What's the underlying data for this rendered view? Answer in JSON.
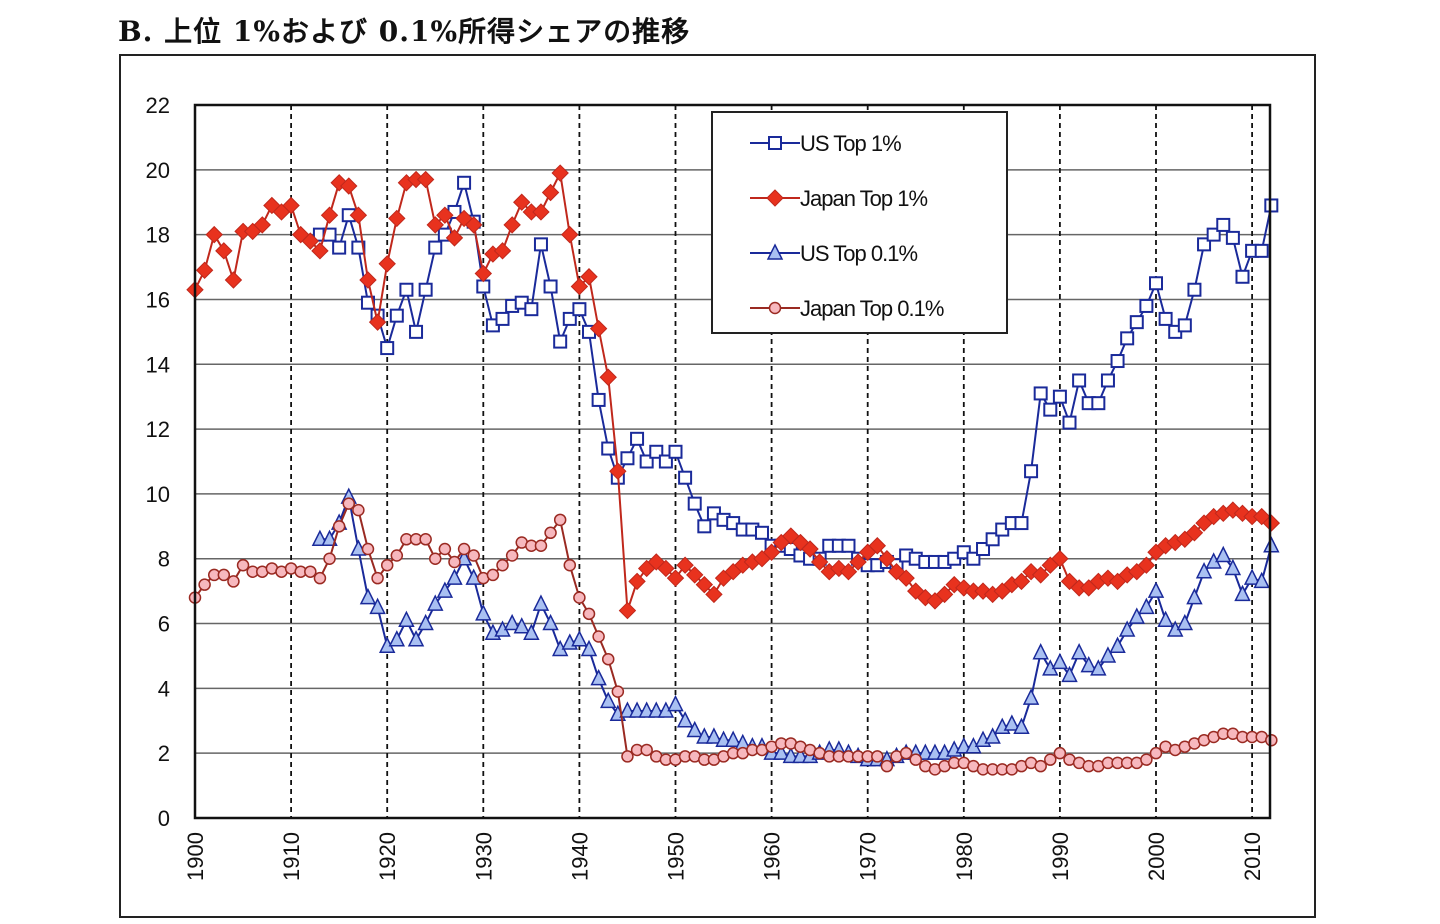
{
  "chart_data": {
    "type": "line",
    "title": "B. 上位 1%および 0.1%所得シェアの推移",
    "xlabel": "",
    "ylabel": "",
    "xlim": [
      1900,
      2012
    ],
    "ylim": [
      0,
      22
    ],
    "yticks": [
      0,
      2,
      4,
      6,
      8,
      10,
      12,
      14,
      16,
      18,
      20,
      22
    ],
    "xticks": [
      1900,
      1910,
      1920,
      1930,
      1940,
      1950,
      1960,
      1970,
      1980,
      1990,
      2000,
      2010
    ],
    "grid": "horizontal solid, vertical dashed",
    "legend_position": "top-center",
    "series": [
      {
        "name": "US Top 1%",
        "color": "#1a2a9a",
        "marker": "square-open",
        "start": 1913,
        "values": [
          18.0,
          18.0,
          17.6,
          18.6,
          17.6,
          15.9,
          15.5,
          14.5,
          15.5,
          16.3,
          15.0,
          16.3,
          17.6,
          18.0,
          18.7,
          19.6,
          18.4,
          16.4,
          15.2,
          15.4,
          15.8,
          15.9,
          15.7,
          17.7,
          16.4,
          14.7,
          15.4,
          15.7,
          15.0,
          12.9,
          11.4,
          10.5,
          11.1,
          11.7,
          11.0,
          11.3,
          11.0,
          11.3,
          10.5,
          9.7,
          9.0,
          9.4,
          9.2,
          9.1,
          8.9,
          8.9,
          8.8,
          8.4,
          8.4,
          8.3,
          8.1,
          8.0,
          8.0,
          8.4,
          8.4,
          8.4,
          8.0,
          7.8,
          7.8,
          7.9,
          7.8,
          8.1,
          8.0,
          7.9,
          7.9,
          7.9,
          8.0,
          8.2,
          8.0,
          8.3,
          8.6,
          8.9,
          9.1,
          9.1,
          10.7,
          13.1,
          12.6,
          13.0,
          12.2,
          13.5,
          12.8,
          12.8,
          13.5,
          14.1,
          14.8,
          15.3,
          15.8,
          16.5,
          15.4,
          15.0,
          15.2,
          16.3,
          17.7,
          18.0,
          18.3,
          17.9,
          16.7,
          17.5,
          17.5,
          18.9
        ]
      },
      {
        "name": "Japan Top 1%",
        "color": "#c0281c",
        "marker": "diamond-filled",
        "start": 1900,
        "values": [
          16.3,
          16.9,
          18.0,
          17.5,
          16.6,
          18.1,
          18.1,
          18.3,
          18.9,
          18.7,
          18.9,
          18.0,
          17.8,
          17.5,
          18.6,
          19.6,
          19.5,
          18.6,
          16.6,
          15.3,
          17.1,
          18.5,
          19.6,
          19.7,
          19.7,
          18.3,
          18.6,
          17.9,
          18.5,
          18.3,
          16.8,
          17.4,
          17.5,
          18.3,
          19.0,
          18.7,
          18.7,
          19.3,
          19.9,
          18.0,
          16.4,
          16.7,
          15.1,
          13.6,
          10.7,
          6.4,
          7.3,
          7.7,
          7.9,
          7.7,
          7.4,
          7.8,
          7.5,
          7.2,
          6.9,
          7.4,
          7.6,
          7.8,
          7.9,
          8.0,
          8.2,
          8.5,
          8.7,
          8.5,
          8.3,
          7.9,
          7.6,
          7.7,
          7.6,
          7.9,
          8.2,
          8.4,
          8.0,
          7.6,
          7.4,
          7.0,
          6.8,
          6.7,
          6.9,
          7.2,
          7.1,
          7.0,
          7.0,
          6.9,
          7.0,
          7.2,
          7.3,
          7.6,
          7.5,
          7.8,
          8.0,
          7.3,
          7.1,
          7.1,
          7.3,
          7.4,
          7.3,
          7.5,
          7.6,
          7.8,
          8.2,
          8.4,
          8.5,
          8.6,
          8.8,
          9.1,
          9.3,
          9.4,
          9.5,
          9.4,
          9.3,
          9.3,
          9.1
        ]
      },
      {
        "name": "US Top 0.1%",
        "color": "#1a2a9a",
        "fill": "#a9c0f2",
        "marker": "triangle",
        "start": 1913,
        "values": [
          8.6,
          8.6,
          9.1,
          9.9,
          8.3,
          6.8,
          6.5,
          5.3,
          5.5,
          6.1,
          5.5,
          6.0,
          6.6,
          7.0,
          7.4,
          8.0,
          7.4,
          6.3,
          5.7,
          5.8,
          6.0,
          5.9,
          5.7,
          6.6,
          6.0,
          5.2,
          5.4,
          5.5,
          5.2,
          4.3,
          3.6,
          3.2,
          3.3,
          3.3,
          3.3,
          3.3,
          3.3,
          3.5,
          3.0,
          2.7,
          2.5,
          2.5,
          2.4,
          2.4,
          2.3,
          2.2,
          2.2,
          2.0,
          2.0,
          1.9,
          1.9,
          1.9,
          2.0,
          2.1,
          2.1,
          2.0,
          1.9,
          1.8,
          1.8,
          1.8,
          1.9,
          2.0,
          2.0,
          2.0,
          2.0,
          2.0,
          2.1,
          2.2,
          2.2,
          2.4,
          2.5,
          2.8,
          2.9,
          2.8,
          3.7,
          5.1,
          4.6,
          4.8,
          4.4,
          5.1,
          4.7,
          4.6,
          5.0,
          5.3,
          5.8,
          6.2,
          6.5,
          7.0,
          6.1,
          5.8,
          6.0,
          6.8,
          7.6,
          7.9,
          8.1,
          7.7,
          6.9,
          7.4,
          7.3,
          8.4
        ]
      },
      {
        "name": "Japan Top 0.1%",
        "color": "#9a2a22",
        "fill": "#f7b8be",
        "marker": "circle",
        "start": 1900,
        "values": [
          6.8,
          7.2,
          7.5,
          7.5,
          7.3,
          7.8,
          7.6,
          7.6,
          7.7,
          7.6,
          7.7,
          7.6,
          7.6,
          7.4,
          8.0,
          9.0,
          9.7,
          9.5,
          8.3,
          7.4,
          7.8,
          8.1,
          8.6,
          8.6,
          8.6,
          8.0,
          8.3,
          7.9,
          8.3,
          8.1,
          7.4,
          7.5,
          7.8,
          8.1,
          8.5,
          8.4,
          8.4,
          8.8,
          9.2,
          7.8,
          6.8,
          6.3,
          5.6,
          4.9,
          3.9,
          1.9,
          2.1,
          2.1,
          1.9,
          1.8,
          1.8,
          1.9,
          1.9,
          1.8,
          1.8,
          1.9,
          2.0,
          2.0,
          2.1,
          2.1,
          2.2,
          2.3,
          2.3,
          2.2,
          2.1,
          2.0,
          1.9,
          1.9,
          1.9,
          1.9,
          1.9,
          1.9,
          1.6,
          1.9,
          2.0,
          1.8,
          1.6,
          1.5,
          1.6,
          1.7,
          1.7,
          1.6,
          1.5,
          1.5,
          1.5,
          1.5,
          1.6,
          1.7,
          1.6,
          1.8,
          2.0,
          1.8,
          1.7,
          1.6,
          1.6,
          1.7,
          1.7,
          1.7,
          1.7,
          1.8,
          2.0,
          2.2,
          2.1,
          2.2,
          2.3,
          2.4,
          2.5,
          2.6,
          2.6,
          2.5,
          2.5,
          2.5,
          2.4
        ]
      }
    ]
  }
}
